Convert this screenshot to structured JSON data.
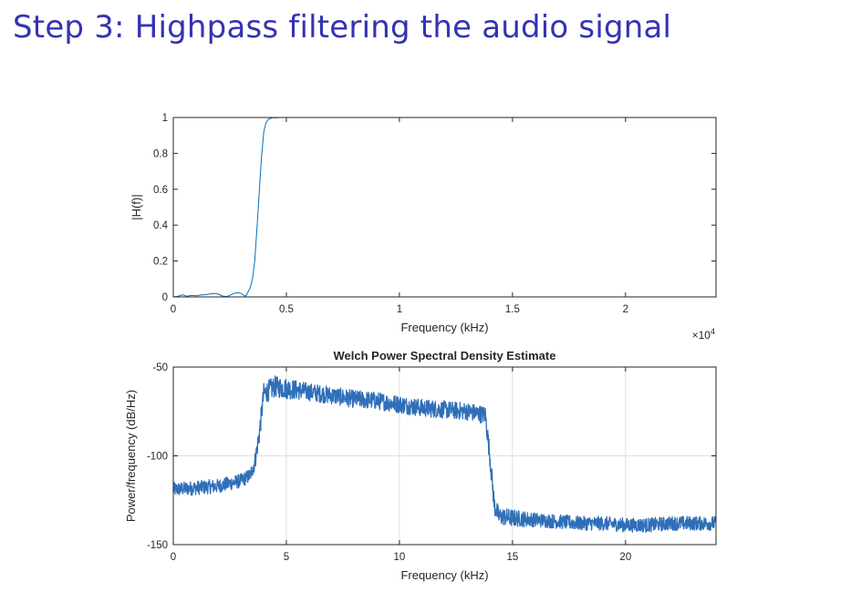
{
  "slide": {
    "title": "Step 3: Highpass filtering the audio signal"
  },
  "chart_data": [
    {
      "type": "line",
      "title": "",
      "xlabel": "Frequency (kHz)",
      "ylabel": "|H(f)|",
      "x_exponent_label": "×10",
      "x_exponent_power": "4",
      "xlim": [
        0,
        24000
      ],
      "ylim": [
        0,
        1
      ],
      "xticks": [
        0,
        5000,
        10000,
        15000,
        20000
      ],
      "xtick_labels": [
        "0",
        "0.5",
        "1",
        "1.5",
        "2"
      ],
      "yticks": [
        0,
        0.2,
        0.4,
        0.6,
        0.8,
        1
      ],
      "ytick_labels": [
        "0",
        "0.2",
        "0.4",
        "0.6",
        "0.8",
        "1"
      ],
      "grid": false,
      "color": "#0072BD",
      "series": [
        {
          "x": [
            0,
            200,
            400,
            600,
            800,
            1000,
            1200,
            1500,
            1800,
            2000,
            2200,
            2400,
            2600,
            2800,
            3000,
            3200,
            3400,
            3500,
            3600,
            3700,
            3800,
            3900,
            4000,
            4100,
            4200,
            4300,
            4400,
            4500,
            4700,
            5000,
            6000,
            8000,
            12000,
            16000,
            20000,
            24000
          ],
          "y": [
            0,
            0.003,
            0.012,
            0.004,
            0.008,
            0.006,
            0.01,
            0.014,
            0.02,
            0.015,
            0.004,
            0.003,
            0.015,
            0.024,
            0.02,
            0.003,
            0.05,
            0.1,
            0.2,
            0.38,
            0.58,
            0.78,
            0.92,
            0.97,
            0.99,
            0.995,
            1.0,
            0.998,
            1.0,
            1.0,
            1.0,
            1.0,
            1.0,
            1.0,
            1.0,
            1.0
          ]
        }
      ]
    },
    {
      "type": "line",
      "title": "Welch Power Spectral Density Estimate",
      "xlabel": "Frequency (kHz)",
      "ylabel": "Power/frequency (dB/Hz)",
      "xlim": [
        0,
        24
      ],
      "ylim": [
        -150,
        -50
      ],
      "xticks": [
        0,
        5,
        10,
        15,
        20
      ],
      "xtick_labels": [
        "0",
        "5",
        "10",
        "15",
        "20"
      ],
      "yticks": [
        -150,
        -100,
        -50
      ],
      "ytick_labels": [
        "-150",
        "-100",
        "-50"
      ],
      "grid": true,
      "color": "#2F6FB8",
      "series": [
        {
          "x": [
            0,
            1,
            2,
            3,
            3.4,
            3.6,
            3.8,
            4,
            4.5,
            5,
            6,
            7,
            8,
            9,
            10,
            11,
            12,
            13,
            13.8,
            14,
            14.2,
            14.4,
            15,
            16,
            17,
            18,
            19,
            20,
            21,
            22,
            23,
            24
          ],
          "y": [
            -119,
            -118,
            -117,
            -114,
            -111,
            -104,
            -88,
            -65,
            -61,
            -62,
            -64,
            -66,
            -68,
            -69,
            -71,
            -73,
            -74,
            -75,
            -77,
            -100,
            -128,
            -134,
            -135,
            -136,
            -137,
            -138,
            -138,
            -139,
            -139,
            -138,
            -138,
            -138
          ],
          "spread": [
            4,
            4,
            4,
            4,
            4,
            5,
            6,
            6,
            6,
            6,
            5,
            5,
            5,
            5,
            5,
            5,
            5,
            5,
            5,
            6,
            6,
            5,
            5,
            4,
            4,
            4,
            4,
            4,
            4,
            4,
            4,
            4
          ]
        }
      ]
    }
  ]
}
